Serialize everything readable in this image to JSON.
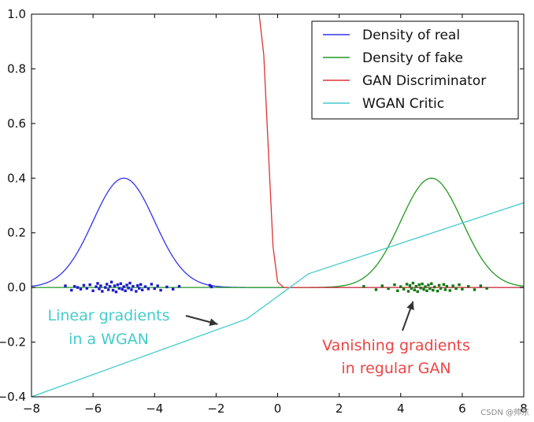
{
  "chart_data": {
    "type": "line",
    "title": "",
    "xlabel": "",
    "ylabel": "",
    "xlim": [
      -8,
      8
    ],
    "ylim": [
      -0.4,
      1.0
    ],
    "grid": false,
    "legend_position": "top-right",
    "x_ticks": [
      -8,
      -6,
      -4,
      -2,
      0,
      2,
      4,
      6,
      8
    ],
    "y_ticks": [
      -0.4,
      -0.2,
      0.0,
      0.2,
      0.4,
      0.6,
      0.8,
      1.0
    ],
    "x_tick_labels": [
      "−8",
      "−6",
      "−4",
      "−2",
      "0",
      "2",
      "4",
      "6",
      "8"
    ],
    "y_tick_labels": [
      "−0.4",
      "−0.2",
      "0.0",
      "0.2",
      "0.4",
      "0.6",
      "0.8",
      "1.0"
    ],
    "series": [
      {
        "name": "Density of real",
        "color": "#3333ee",
        "kind": "gaussian",
        "mean": -5.0,
        "sd": 1.0,
        "peak": 0.4
      },
      {
        "name": "Density of fake",
        "color": "#229922",
        "kind": "gaussian",
        "mean": 5.0,
        "sd": 1.0,
        "peak": 0.4
      },
      {
        "name": "GAN Discriminator",
        "color": "#dd3333",
        "kind": "sigmoid",
        "points": [
          [
            -0.6,
            1.0
          ],
          [
            -0.45,
            0.85
          ],
          [
            -0.3,
            0.5
          ],
          [
            -0.15,
            0.15
          ],
          [
            0.0,
            0.02
          ],
          [
            0.2,
            0.0
          ],
          [
            8.0,
            0.0
          ]
        ]
      },
      {
        "name": "WGAN Critic",
        "color": "#44cccc",
        "kind": "piecewise",
        "points": [
          [
            -8.0,
            -0.4
          ],
          [
            -1.0,
            -0.115
          ],
          [
            1.0,
            0.05
          ],
          [
            8.0,
            0.31
          ]
        ]
      }
    ],
    "scatter": [
      {
        "series": "Density of real",
        "color": "#1a1acc",
        "points": [
          [
            -6.9,
            0.006
          ],
          [
            -6.7,
            -0.01
          ],
          [
            -6.6,
            0.004
          ],
          [
            -6.5,
            0.0
          ],
          [
            -6.4,
            -0.006
          ],
          [
            -6.3,
            0.008
          ],
          [
            -6.2,
            -0.003
          ],
          [
            -6.1,
            0.01
          ],
          [
            -6.0,
            -0.012
          ],
          [
            -5.9,
            0.003
          ],
          [
            -5.85,
            0.015
          ],
          [
            -5.8,
            -0.005
          ],
          [
            -5.75,
            0.006
          ],
          [
            -5.7,
            -0.014
          ],
          [
            -5.6,
            0.0
          ],
          [
            -5.55,
            0.012
          ],
          [
            -5.5,
            -0.008
          ],
          [
            -5.45,
            0.004
          ],
          [
            -5.4,
            0.02
          ],
          [
            -5.35,
            -0.01
          ],
          [
            -5.3,
            0.006
          ],
          [
            -5.25,
            -0.016
          ],
          [
            -5.2,
            0.01
          ],
          [
            -5.15,
            -0.003
          ],
          [
            -5.1,
            0.014
          ],
          [
            -5.05,
            -0.007
          ],
          [
            -5.0,
            0.003
          ],
          [
            -4.95,
            -0.012
          ],
          [
            -4.9,
            0.009
          ],
          [
            -4.85,
            -0.002
          ],
          [
            -4.8,
            0.016
          ],
          [
            -4.75,
            -0.008
          ],
          [
            -4.7,
            0.004
          ],
          [
            -4.6,
            -0.014
          ],
          [
            -4.55,
            0.007
          ],
          [
            -4.5,
            -0.003
          ],
          [
            -4.45,
            0.011
          ],
          [
            -4.4,
            -0.009
          ],
          [
            -4.3,
            0.003
          ],
          [
            -4.2,
            -0.005
          ],
          [
            -4.1,
            0.012
          ],
          [
            -4.0,
            -0.004
          ],
          [
            -3.9,
            0.006
          ],
          [
            -3.8,
            -0.01
          ],
          [
            -3.6,
            0.002
          ],
          [
            -3.4,
            -0.006
          ],
          [
            -3.2,
            0.004
          ],
          [
            -2.2,
            0.008
          ],
          [
            -2.15,
            0.002
          ]
        ]
      },
      {
        "series": "Density of fake",
        "color": "#117711",
        "points": [
          [
            2.8,
            0.004
          ],
          [
            3.2,
            -0.008
          ],
          [
            3.4,
            0.006
          ],
          [
            3.6,
            -0.004
          ],
          [
            3.8,
            0.01
          ],
          [
            3.9,
            -0.012
          ],
          [
            4.0,
            0.003
          ],
          [
            4.1,
            -0.006
          ],
          [
            4.2,
            0.012
          ],
          [
            4.25,
            -0.014
          ],
          [
            4.3,
            0.007
          ],
          [
            4.35,
            -0.003
          ],
          [
            4.4,
            0.016
          ],
          [
            4.45,
            -0.009
          ],
          [
            4.5,
            0.004
          ],
          [
            4.55,
            -0.015
          ],
          [
            4.6,
            0.01
          ],
          [
            4.65,
            -0.002
          ],
          [
            4.7,
            0.013
          ],
          [
            4.75,
            -0.007
          ],
          [
            4.8,
            0.003
          ],
          [
            4.85,
            -0.012
          ],
          [
            4.9,
            0.009
          ],
          [
            4.95,
            -0.004
          ],
          [
            5.0,
            0.014
          ],
          [
            5.05,
            -0.01
          ],
          [
            5.1,
            0.002
          ],
          [
            5.2,
            -0.013
          ],
          [
            5.25,
            0.008
          ],
          [
            5.3,
            -0.003
          ],
          [
            5.4,
            0.011
          ],
          [
            5.45,
            -0.008
          ],
          [
            5.5,
            0.004
          ],
          [
            5.6,
            -0.011
          ],
          [
            5.7,
            0.006
          ],
          [
            5.8,
            -0.004
          ],
          [
            5.9,
            0.01
          ],
          [
            6.0,
            -0.006
          ],
          [
            6.2,
            0.004
          ],
          [
            6.4,
            -0.008
          ],
          [
            6.6,
            0.006
          ],
          [
            6.8,
            -0.003
          ]
        ]
      }
    ],
    "annotations": [
      {
        "lines": [
          "Linear gradients",
          "in a WGAN"
        ],
        "color": "#44cccc",
        "arrow_to": [
          -2.0,
          -0.14
        ]
      },
      {
        "lines": [
          "Vanishing gradients",
          "in regular GAN"
        ],
        "color": "#ee4444",
        "arrow_to": [
          4.3,
          -0.005
        ]
      }
    ],
    "watermark": "CSDN @帅东"
  }
}
